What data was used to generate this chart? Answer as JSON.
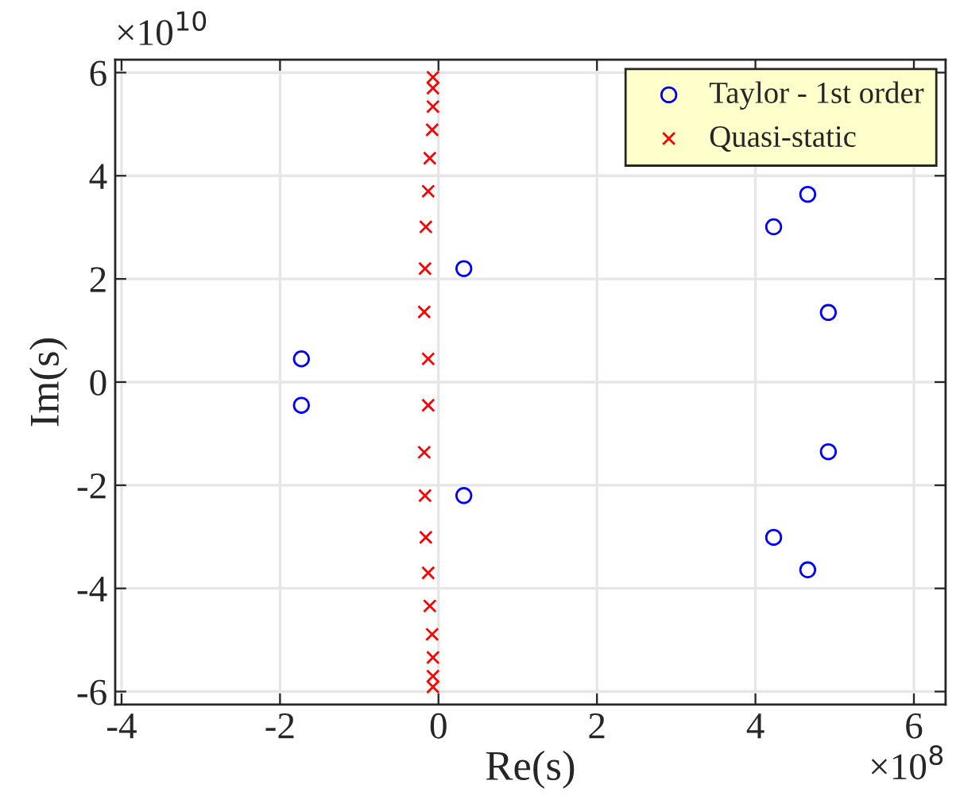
{
  "chart_data": {
    "type": "scatter",
    "xlabel": "Re(s)",
    "ylabel": "Im(s)",
    "annotations": [
      "×10$^{8}$",
      "×10$^{10}$"
    ],
    "xlim": [
      -4.08,
      6.4
    ],
    "ylim": [
      -6.25,
      6.25
    ],
    "xticks": [
      -4,
      -2,
      0,
      2,
      4,
      6
    ],
    "yticks": [
      -6,
      -4,
      -2,
      0,
      2,
      4,
      6
    ],
    "grid": true,
    "legend": "top right",
    "series": [
      {
        "name": "Taylor - 1st order",
        "color": "#0000ff",
        "marker": "circle",
        "x": [
          -1.73,
          -1.73,
          0.32,
          0.32,
          4.66,
          4.66,
          4.23,
          4.23,
          4.92,
          4.92
        ],
        "values": [
          0.45,
          -0.45,
          2.2,
          -2.2,
          3.64,
          -3.64,
          3.01,
          -3.01,
          1.35,
          -1.35
        ]
      },
      {
        "name": "Quasi-static",
        "color": "#ff0000",
        "marker": "cross",
        "x": [
          -0.07,
          -0.07,
          -0.07,
          -0.08,
          -0.11,
          -0.13,
          -0.16,
          -0.17,
          -0.18,
          -0.13,
          -0.13,
          -0.18,
          -0.17,
          -0.16,
          -0.13,
          -0.11,
          -0.08,
          -0.07,
          -0.07,
          -0.07
        ],
        "values": [
          5.91,
          5.7,
          5.34,
          4.89,
          4.34,
          3.7,
          3.01,
          2.2,
          1.36,
          0.45,
          -0.45,
          -1.36,
          -2.2,
          -3.01,
          -3.7,
          -4.34,
          -4.89,
          -5.34,
          -5.7,
          -5.91
        ]
      }
    ]
  }
}
